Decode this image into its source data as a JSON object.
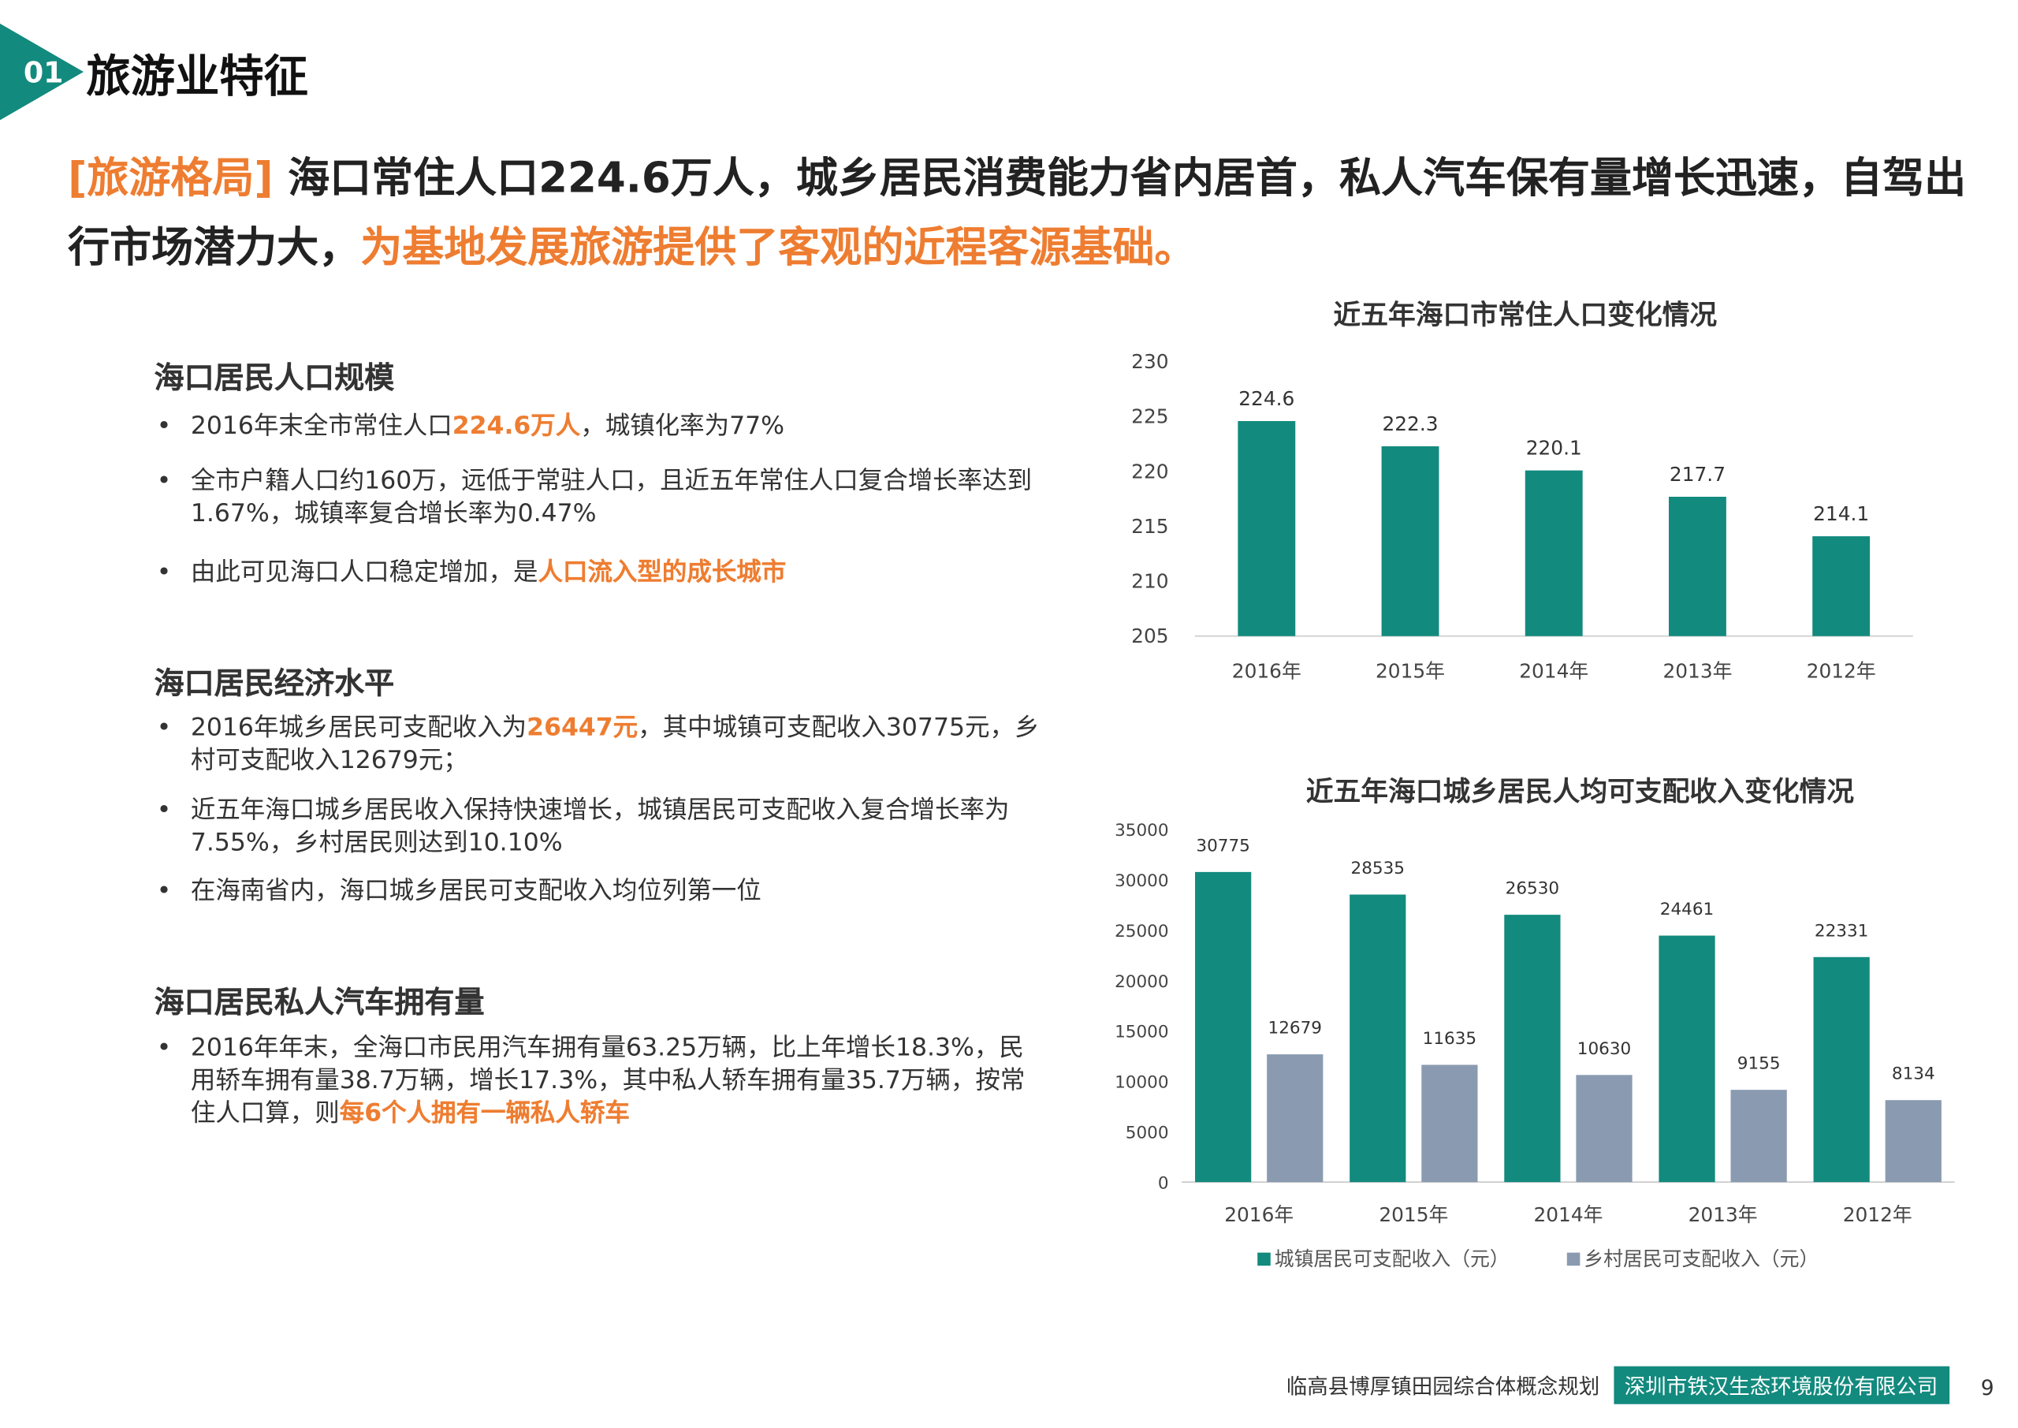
{
  "header": {
    "number": "01",
    "title": "旅游业特征"
  },
  "headline": [
    "[旅游格局]",
    " 海口常住人口224.6万人，城乡居民消费能力省内居首，私人汽车保有量增长迅速，自驾出行市场潜力大，",
    "为基地发展旅游提供了客观的近程客源基础。"
  ],
  "sections": [
    {
      "heading": "海口居民人口规模",
      "bullets": [
        [
          "2016年末全市常住人口",
          "224.6万人",
          "，城镇化率为77%"
        ],
        [
          "全市户籍人口约160万，远低于常驻人口，且近五年常住人口复合增长率达到1.67%，城镇率复合增长率为0.47%"
        ],
        [
          "由此可见海口人口稳定增加，是",
          "人口流入型的成长城市"
        ]
      ]
    },
    {
      "heading": "海口居民经济水平",
      "bullets": [
        [
          "2016年城乡居民可支配收入为",
          "26447元",
          "，其中城镇可支配收入30775元，乡村可支配收入12679元；"
        ],
        [
          "近五年海口城乡居民收入保持快速增长，城镇居民可支配收入复合增长率为7.55%，乡村居民则达到10.10%"
        ],
        [
          "在海南省内，海口城乡居民可支配收入均位列第一位"
        ]
      ]
    },
    {
      "heading": "海口居民私人汽车拥有量",
      "bullets": [
        [
          "2016年年末，全海口市民用汽车拥有量63.25万辆，比上年增长18.3%，民用轿车拥有量38.7万辆，增长17.3%，其中私人轿车拥有量35.7万辆，按常住人口算，则",
          "每6个人拥有一辆私人轿车"
        ]
      ]
    }
  ],
  "chart_data": [
    {
      "type": "bar",
      "title": "近五年海口市常住人口变化情况",
      "categories": [
        "2016年",
        "2015年",
        "2014年",
        "2013年",
        "2012年"
      ],
      "values": [
        224.6,
        222.3,
        220.1,
        217.7,
        214.1
      ],
      "color": "#138a7e",
      "ylim": [
        205,
        230
      ],
      "yticks": [
        205,
        210,
        215,
        220,
        225,
        230
      ]
    },
    {
      "type": "grouped-bar",
      "title": "近五年海口城乡居民人均可支配收入变化情况",
      "categories": [
        "2016年",
        "2015年",
        "2014年",
        "2013年",
        "2012年"
      ],
      "series": [
        {
          "name": "城镇居民可支配收入（元）",
          "color": "#138a7e",
          "values": [
            30775,
            28535,
            26530,
            24461,
            22331
          ]
        },
        {
          "name": "乡村居民可支配收入（元）",
          "color": "#8a9bb1",
          "values": [
            12679,
            11635,
            10630,
            9155,
            8134
          ]
        }
      ],
      "ylim": [
        0,
        35000
      ],
      "yticks": [
        0,
        5000,
        10000,
        15000,
        20000,
        25000,
        30000,
        35000
      ],
      "legend": "bottom"
    }
  ],
  "footer": {
    "project": "临高县博厚镇田园综合体概念规划",
    "company": "深圳市铁汉生态环境股份有限公司",
    "page": "9"
  }
}
